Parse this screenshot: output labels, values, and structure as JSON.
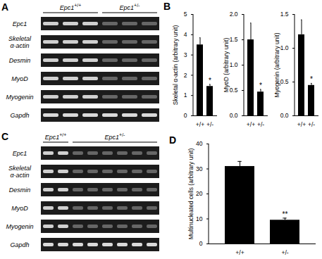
{
  "gels": [
    {
      "panel": "A",
      "gene": "Epc1",
      "groups": [
        {
          "genotype": "+/+",
          "lanes": 3
        },
        {
          "genotype": "+/-",
          "lanes": 3
        }
      ],
      "rows": [
        [
          "Epc1"
        ],
        [
          "Skeletal",
          "α-actin"
        ],
        [
          "Desmin"
        ],
        [
          "MyoD"
        ],
        [
          "Myogenin"
        ],
        [
          "Gapdh"
        ]
      ]
    },
    {
      "panel": "C",
      "gene": "Epc1",
      "groups": [
        {
          "genotype": "+/+",
          "lanes": 2
        },
        {
          "genotype": "+/-",
          "lanes": 6
        }
      ],
      "rows": [
        [
          "Epc1"
        ],
        [
          "Skeletal",
          "α-actin"
        ],
        [
          "Desmin"
        ],
        [
          "MyoD"
        ],
        [
          "Myogenin"
        ],
        [
          "Gapdh"
        ]
      ]
    }
  ],
  "chart_data": [
    {
      "panel": "B",
      "type": "bar",
      "categories": [
        "+/+",
        "+/-"
      ],
      "values": [
        3.5,
        1.45
      ],
      "errors": [
        0.35,
        0.1
      ],
      "ylabel": "Skeletal α-actin (arbitrary unit)",
      "ylim": [
        0,
        5
      ],
      "yticks": [
        0,
        1,
        2,
        3,
        4,
        5
      ],
      "significance": {
        "category": "+/-",
        "label": "*"
      },
      "color": "#000000"
    },
    {
      "panel": "B",
      "type": "bar",
      "categories": [
        "+/+",
        "+/-"
      ],
      "values": [
        1.5,
        0.47
      ],
      "errors": [
        0.33,
        0.05
      ],
      "ylabel": "MyoD (arbitrary unit)",
      "ylim": [
        0,
        2
      ],
      "yticks": [
        {
          "value": 0,
          "label": "0.0"
        },
        0.5,
        {
          "value": 1,
          "label": "1.0"
        },
        1.5,
        {
          "value": 2,
          "label": "2.0"
        }
      ],
      "significance": {
        "category": "+/-",
        "label": "*"
      },
      "color": "#000000"
    },
    {
      "panel": "B",
      "type": "bar",
      "categories": [
        "+/+",
        "+/-"
      ],
      "values": [
        1.2,
        0.45
      ],
      "errors": [
        0.22,
        0.03
      ],
      "ylabel": "Myogenin (arbitrary unit)",
      "ylim": [
        0,
        1.5
      ],
      "yticks": [
        {
          "value": 0,
          "label": "0.0"
        },
        0.5,
        {
          "value": 1,
          "label": "1.0"
        },
        1.5
      ],
      "significance": {
        "category": "+/-",
        "label": "*"
      },
      "color": "#000000"
    },
    {
      "panel": "D",
      "type": "bar",
      "categories": [
        "+/+",
        "+/-"
      ],
      "values": [
        31,
        9.5
      ],
      "errors": [
        2,
        0.8
      ],
      "ylabel": "Multinucleated cells (arbitrary unit)",
      "ylim": [
        0,
        40
      ],
      "yticks": [
        0,
        10,
        20,
        30,
        40
      ],
      "significance": {
        "category": "+/-",
        "label": "**"
      },
      "color": "#000000"
    }
  ]
}
